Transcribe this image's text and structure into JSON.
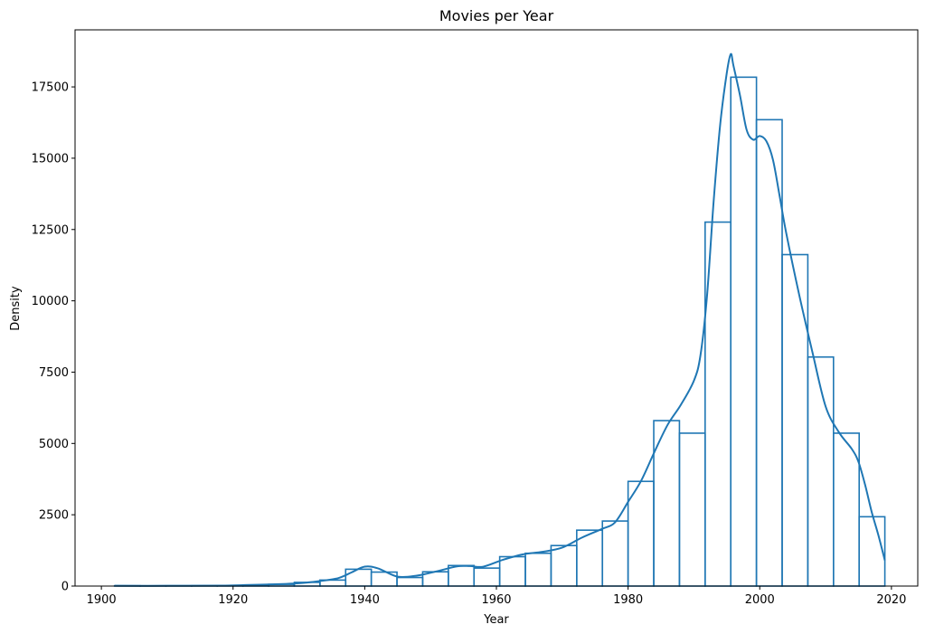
{
  "chart_data": {
    "type": "bar",
    "title": "Movies per Year",
    "xlabel": "Year",
    "ylabel": "Density",
    "xlim": [
      1896,
      2024
    ],
    "ylim": [
      0,
      19500
    ],
    "x_ticks": [
      1900,
      1920,
      1940,
      1960,
      1980,
      2000,
      2020
    ],
    "y_ticks": [
      0,
      2500,
      5000,
      7500,
      10000,
      12500,
      15000,
      17500
    ],
    "grid": false,
    "color": "#1f77b4",
    "bins": [
      {
        "start": 1902.0,
        "end": 1905.9,
        "value": 10
      },
      {
        "start": 1905.9,
        "end": 1909.8,
        "value": 5
      },
      {
        "start": 1909.8,
        "end": 1913.7,
        "value": 5
      },
      {
        "start": 1913.7,
        "end": 1917.6,
        "value": 10
      },
      {
        "start": 1917.6,
        "end": 1921.5,
        "value": 20
      },
      {
        "start": 1921.5,
        "end": 1925.4,
        "value": 40
      },
      {
        "start": 1925.4,
        "end": 1929.3,
        "value": 60
      },
      {
        "start": 1929.3,
        "end": 1933.2,
        "value": 130
      },
      {
        "start": 1933.2,
        "end": 1937.1,
        "value": 210
      },
      {
        "start": 1937.1,
        "end": 1941.0,
        "value": 590
      },
      {
        "start": 1941.0,
        "end": 1944.9,
        "value": 490
      },
      {
        "start": 1944.9,
        "end": 1948.8,
        "value": 300
      },
      {
        "start": 1948.8,
        "end": 1952.7,
        "value": 500
      },
      {
        "start": 1952.7,
        "end": 1956.6,
        "value": 720
      },
      {
        "start": 1956.6,
        "end": 1960.5,
        "value": 630
      },
      {
        "start": 1960.5,
        "end": 1964.4,
        "value": 1030
      },
      {
        "start": 1964.4,
        "end": 1968.3,
        "value": 1150
      },
      {
        "start": 1968.3,
        "end": 1972.2,
        "value": 1420
      },
      {
        "start": 1972.2,
        "end": 1976.1,
        "value": 1960
      },
      {
        "start": 1976.1,
        "end": 1980.0,
        "value": 2280
      },
      {
        "start": 1980.0,
        "end": 1983.9,
        "value": 3670
      },
      {
        "start": 1983.9,
        "end": 1987.8,
        "value": 5800
      },
      {
        "start": 1987.8,
        "end": 1991.7,
        "value": 5360
      },
      {
        "start": 1991.7,
        "end": 1995.6,
        "value": 12760
      },
      {
        "start": 1995.6,
        "end": 1999.5,
        "value": 17840
      },
      {
        "start": 1999.5,
        "end": 2003.4,
        "value": 16350
      },
      {
        "start": 2003.4,
        "end": 2007.3,
        "value": 11620
      },
      {
        "start": 2007.3,
        "end": 2011.2,
        "value": 8030
      },
      {
        "start": 2011.2,
        "end": 2015.1,
        "value": 5360
      },
      {
        "start": 2015.1,
        "end": 2019.0,
        "value": 2430
      }
    ],
    "kde": {
      "x": [
        1902,
        1910,
        1918,
        1922,
        1926,
        1930,
        1933,
        1936,
        1938,
        1940,
        1942,
        1945,
        1948,
        1951,
        1954,
        1956,
        1958,
        1961,
        1964,
        1967,
        1970,
        1973,
        1976,
        1978,
        1980,
        1982,
        1984,
        1986,
        1988,
        1990,
        1991,
        1992,
        1993,
        1994,
        1995,
        1995.6,
        1996,
        1997,
        1998,
        1999,
        2000,
        2001,
        2002,
        2003,
        2004,
        2006,
        2008,
        2010,
        2012,
        2014,
        2015,
        2016,
        2017,
        2018,
        2019
      ],
      "y": [
        10,
        10,
        15,
        35,
        60,
        100,
        170,
        280,
        480,
        680,
        620,
        330,
        370,
        520,
        690,
        700,
        680,
        920,
        1110,
        1200,
        1350,
        1700,
        2000,
        2230,
        2950,
        3700,
        4700,
        5650,
        6350,
        7200,
        8100,
        10200,
        13500,
        16200,
        18000,
        18650,
        18250,
        17200,
        16000,
        15650,
        15780,
        15600,
        14950,
        13700,
        12400,
        10200,
        8200,
        6300,
        5400,
        4800,
        4350,
        3550,
        2600,
        1800,
        900
      ]
    }
  }
}
